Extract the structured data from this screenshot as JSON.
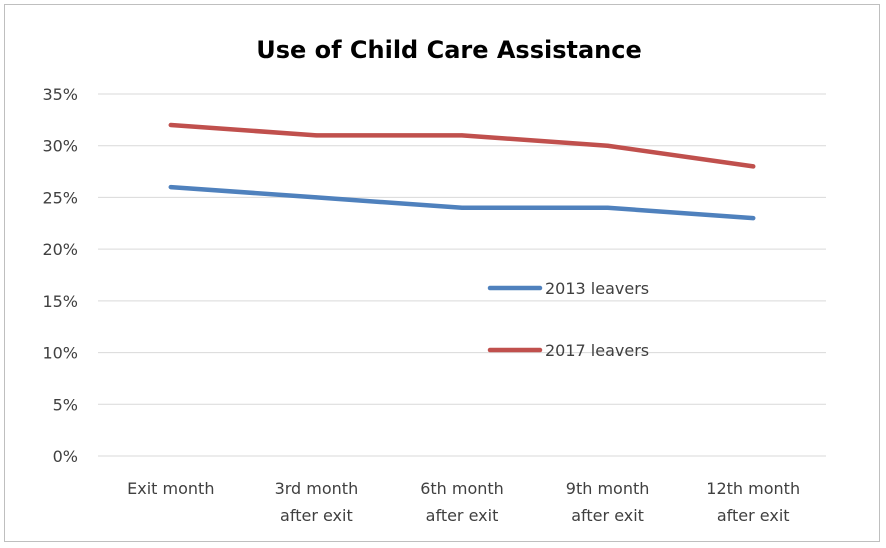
{
  "chart_data": {
    "type": "line",
    "title": "Use of Child Care Assistance",
    "categories": [
      [
        "Exit month"
      ],
      [
        "3rd month",
        "after exit"
      ],
      [
        "6th month",
        "after exit"
      ],
      [
        "9th month",
        "after exit"
      ],
      [
        "12th month",
        "after exit"
      ]
    ],
    "series": [
      {
        "name": "2013 leavers",
        "values": [
          26,
          25,
          24,
          24,
          23
        ],
        "color": "#4f81bd"
      },
      {
        "name": "2017 leavers",
        "values": [
          32,
          31,
          31,
          30,
          28
        ],
        "color": "#c0504d"
      }
    ],
    "ylim": [
      0,
      35
    ],
    "yticks": [
      "0%",
      "5%",
      "10%",
      "15%",
      "20%",
      "25%",
      "30%",
      "35%"
    ],
    "grid": true,
    "legend_position": "inside-right"
  }
}
